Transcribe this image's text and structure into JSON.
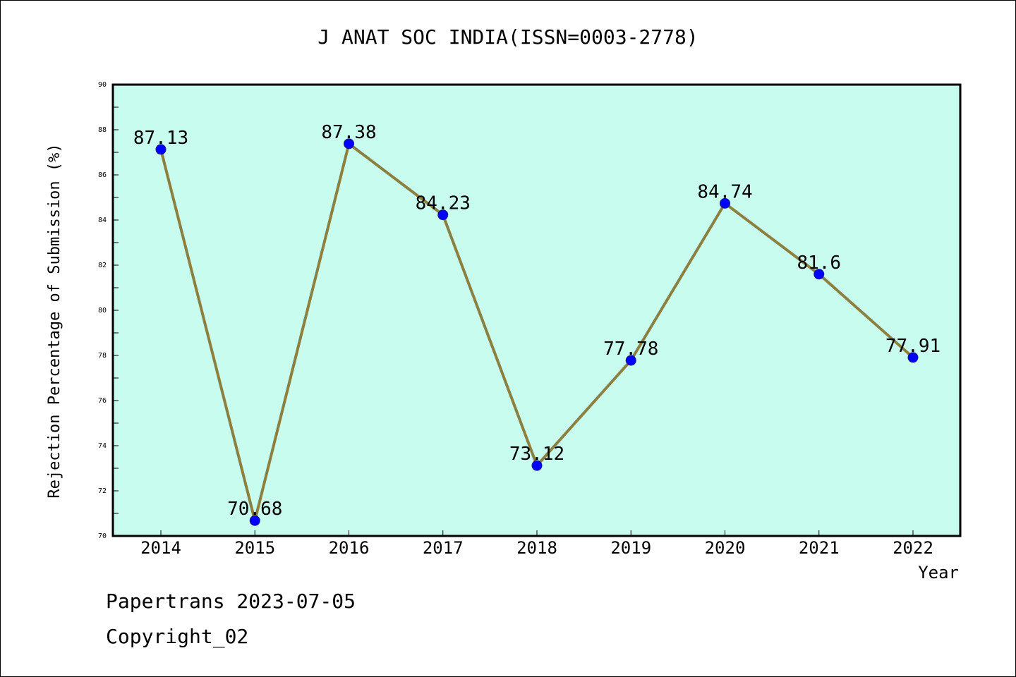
{
  "page": {
    "footer_line1": "Papertrans 2023-07-05",
    "footer_line2": "Copyright_02"
  },
  "colors": {
    "plot_background": "#c8fcee",
    "line": "#8b8040",
    "marker": "#0000ff",
    "axis": "#000000"
  },
  "chart_data": {
    "type": "line",
    "title": "J ANAT SOC INDIA(ISSN=0003-2778)",
    "xlabel": "Year",
    "ylabel": "Rejection Percentage of Submission (%)",
    "categories": [
      "2014",
      "2015",
      "2016",
      "2017",
      "2018",
      "2019",
      "2020",
      "2021",
      "2022"
    ],
    "series": [
      {
        "values": [
          87.13,
          70.68,
          87.38,
          84.23,
          73.12,
          77.78,
          84.74,
          81.6,
          77.91
        ]
      }
    ],
    "data_labels": [
      "87.13",
      "70.68",
      "87.38",
      "84.23",
      "73.12",
      "77.78",
      "84.74",
      "81.6",
      "77.91"
    ],
    "ylim": [
      70,
      90
    ],
    "yticks": [
      70,
      72,
      74,
      76,
      78,
      80,
      82,
      84,
      86,
      88,
      90
    ],
    "grid": false,
    "legend": "none"
  }
}
